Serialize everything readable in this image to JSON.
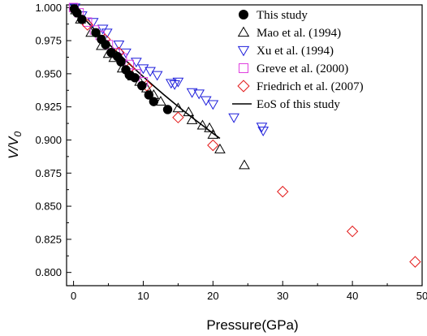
{
  "chart_data": {
    "type": "scatter",
    "xlabel": "Pressure(GPa)",
    "ylabel_main": "V/V",
    "ylabel_sub": "0",
    "xlim": [
      -1,
      50
    ],
    "ylim": [
      0.79,
      1.002
    ],
    "xticks": [
      0,
      10,
      20,
      30,
      40,
      50
    ],
    "xtick_labels": [
      "0",
      "10",
      "20",
      "30",
      "40",
      "50"
    ],
    "yticks": [
      0.8,
      0.825,
      0.85,
      0.875,
      0.9,
      0.925,
      0.95,
      0.975,
      1.0
    ],
    "ytick_labels": [
      "0.800",
      "0.825",
      "0.850",
      "0.875",
      "0.900",
      "0.925",
      "0.950",
      "0.975",
      "1.000"
    ],
    "grid": false,
    "legend_position": "top-right",
    "series": [
      {
        "name": "This study",
        "marker": "filled-circle",
        "color": "#000000",
        "points": [
          [
            0.1,
            0.999
          ],
          [
            0.5,
            0.996
          ],
          [
            1.2,
            0.991
          ],
          [
            3.2,
            0.981
          ],
          [
            4.0,
            0.976
          ],
          [
            4.6,
            0.972
          ],
          [
            5.4,
            0.966
          ],
          [
            6.3,
            0.963
          ],
          [
            6.8,
            0.959
          ],
          [
            7.5,
            0.953
          ],
          [
            8.0,
            0.949
          ],
          [
            8.8,
            0.947
          ],
          [
            9.8,
            0.941
          ],
          [
            10.8,
            0.934
          ],
          [
            11.5,
            0.929
          ],
          [
            13.5,
            0.923
          ]
        ]
      },
      {
        "name": "Mao et al. (1994)",
        "marker": "triangle-up",
        "color": "#000000",
        "points": [
          [
            0.3,
            0.998
          ],
          [
            1.0,
            0.991
          ],
          [
            2.5,
            0.981
          ],
          [
            4.0,
            0.971
          ],
          [
            5.0,
            0.965
          ],
          [
            5.8,
            0.962
          ],
          [
            7.0,
            0.954
          ],
          [
            8.5,
            0.948
          ],
          [
            9.5,
            0.944
          ],
          [
            10.5,
            0.939
          ],
          [
            11.5,
            0.934
          ],
          [
            12.5,
            0.929
          ],
          [
            15.0,
            0.924
          ],
          [
            16.5,
            0.921
          ],
          [
            17.0,
            0.915
          ],
          [
            18.5,
            0.911
          ],
          [
            19.5,
            0.909
          ],
          [
            20.0,
            0.904
          ],
          [
            21.0,
            0.893
          ],
          [
            24.5,
            0.881
          ]
        ]
      },
      {
        "name": "Xu et al. (1994)",
        "marker": "triangle-down",
        "color": "#1f1fdb",
        "points": [
          [
            0.2,
            1.0
          ],
          [
            1.2,
            0.994
          ],
          [
            2.8,
            0.989
          ],
          [
            4.2,
            0.984
          ],
          [
            4.8,
            0.981
          ],
          [
            6.5,
            0.972
          ],
          [
            7.5,
            0.966
          ],
          [
            9.0,
            0.959
          ],
          [
            10.0,
            0.954
          ],
          [
            11.0,
            0.952
          ],
          [
            12.0,
            0.949
          ],
          [
            14.0,
            0.943
          ],
          [
            14.5,
            0.942
          ],
          [
            15.0,
            0.944
          ],
          [
            17.0,
            0.936
          ],
          [
            18.0,
            0.935
          ],
          [
            19.0,
            0.93
          ],
          [
            20.0,
            0.927
          ],
          [
            23.0,
            0.917
          ],
          [
            27.0,
            0.91
          ],
          [
            27.2,
            0.907
          ]
        ]
      },
      {
        "name": "Greve et al. (2000)",
        "marker": "square",
        "color": "#e040e0",
        "points": [
          [
            0.0,
            1.0
          ],
          [
            0.8,
            0.996
          ],
          [
            2.0,
            0.989
          ],
          [
            3.0,
            0.983
          ],
          [
            3.8,
            0.979
          ],
          [
            5.0,
            0.972
          ],
          [
            6.0,
            0.966
          ],
          [
            7.0,
            0.962
          ],
          [
            8.0,
            0.957
          ],
          [
            9.0,
            0.95
          ],
          [
            10.0,
            0.944
          ]
        ]
      },
      {
        "name": "Friedrich et al. (2007)",
        "marker": "diamond",
        "color": "#e31a1a",
        "points": [
          [
            2.0,
            0.987
          ],
          [
            4.5,
            0.976
          ],
          [
            6.5,
            0.966
          ],
          [
            8.0,
            0.954
          ],
          [
            10.5,
            0.941
          ],
          [
            15.0,
            0.917
          ],
          [
            20.0,
            0.896
          ],
          [
            30.0,
            0.861
          ],
          [
            40.0,
            0.831
          ],
          [
            49.0,
            0.808
          ]
        ]
      }
    ],
    "eos_curve": {
      "name": "EoS of this study",
      "color": "#000000",
      "points": [
        [
          0,
          1.0
        ],
        [
          1,
          0.9945
        ],
        [
          2,
          0.989
        ],
        [
          3,
          0.9835
        ],
        [
          4,
          0.9781
        ],
        [
          5,
          0.9728
        ],
        [
          6,
          0.9676
        ],
        [
          7,
          0.9625
        ],
        [
          8,
          0.9575
        ],
        [
          9,
          0.9526
        ],
        [
          10,
          0.9478
        ],
        [
          11,
          0.9431
        ],
        [
          12,
          0.9385
        ],
        [
          13,
          0.934
        ],
        [
          14,
          0.9296
        ],
        [
          15,
          0.9253
        ],
        [
          16,
          0.9211
        ],
        [
          17,
          0.917
        ],
        [
          18,
          0.913
        ],
        [
          19,
          0.909
        ],
        [
          20,
          0.905
        ],
        [
          21,
          0.9012
        ]
      ]
    }
  }
}
